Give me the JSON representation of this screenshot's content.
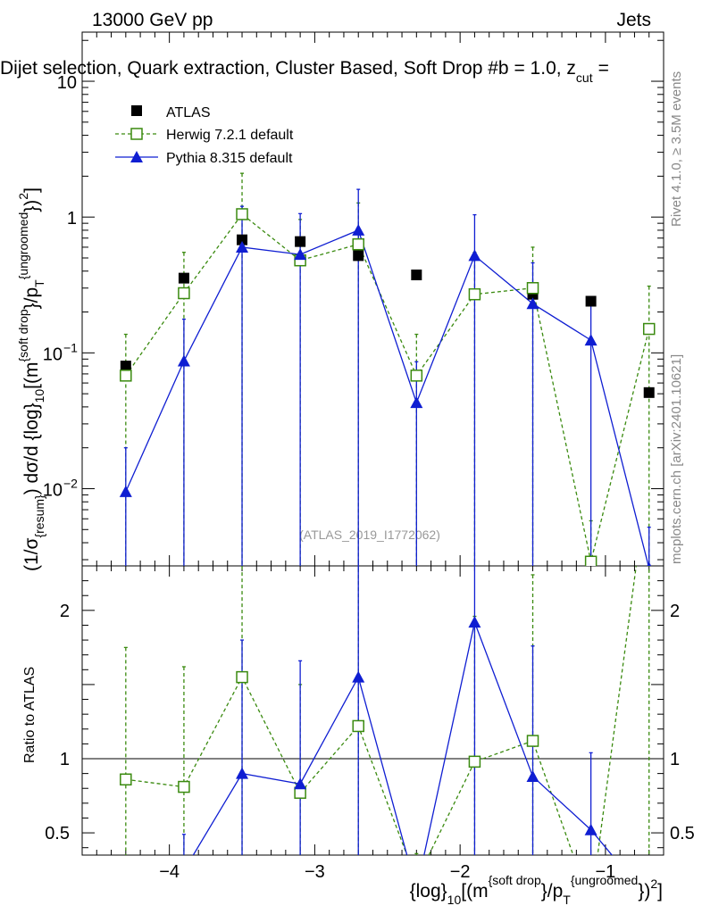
{
  "header": {
    "left": "13000 GeV pp",
    "right": "Jets"
  },
  "chart_data": {
    "type": "scatter",
    "title": "Dijet selection, Quark extraction, Cluster Based, Soft Drop #b",
    "title_parts": {
      "beta": "= 1.0, z",
      "zcut_sub": "cut",
      "tail": "="
    },
    "ylabel_parts": {
      "a": "(1/σ",
      "a_sub": "{resum}",
      "b": ") dσ/d {log}",
      "b_sub": "10",
      "c": "[(m",
      "c_sup": "{soft drop",
      "d": "}/p",
      "d_sub": "T",
      "d_sup": "{ungroomed",
      "e": "})",
      "e_sup": "2",
      "f": "]"
    },
    "xlabel_parts": {
      "a": "{log}",
      "a_sub": "10",
      "b": "[(m",
      "b_sup": "{soft drop",
      "c": "}/p",
      "c_sub": "T",
      "c_sup": "{ungroomed",
      "d": "})",
      "d_sup": "2",
      "e": "]"
    },
    "ratio_ylabel": "Ratio to ATLAS",
    "watermark": "(ATLAS_2019_I1772062)",
    "side_text_top": "Rivet 4.1.0, ≥ 3.5M events",
    "side_text_bottom": "mcplots.cern.ch [arXiv:2401.10621]",
    "xlim": [
      -4.6,
      -0.6
    ],
    "ylim_main": [
      0.0027,
      23
    ],
    "ylim_ratio": [
      0.35,
      2.3
    ],
    "x_ticks": [
      {
        "value": -4,
        "label": "−4"
      },
      {
        "value": -3,
        "label": "−3"
      },
      {
        "value": -2,
        "label": "−2"
      },
      {
        "value": -1,
        "label": "−1"
      }
    ],
    "y_ticks_main": [
      {
        "value": 10,
        "label": "10"
      },
      {
        "value": 1,
        "label": "1"
      },
      {
        "value": 0.1,
        "label": "10",
        "sup": "−1"
      },
      {
        "value": 0.01,
        "label": "10",
        "sup": "−2"
      }
    ],
    "y_ticks_ratio": [
      {
        "value": 2,
        "label": "2"
      },
      {
        "value": 1,
        "label": "1"
      },
      {
        "value": 0.5,
        "label": "0.5"
      }
    ],
    "x": [
      -4.3,
      -3.9,
      -3.5,
      -3.1,
      -2.7,
      -2.3,
      -1.9,
      -1.5,
      -1.1,
      -0.7
    ],
    "series": [
      {
        "name": "ATLAS",
        "color": "#000000",
        "marker": "square-filled",
        "values": [
          0.08,
          0.355,
          0.68,
          0.66,
          0.52,
          0.375,
          0.27,
          0.27,
          0.24,
          0.051
        ]
      },
      {
        "name": "Herwig 7.2.1 default",
        "color": "#3a8a0f",
        "marker": "square-open",
        "linestyle": "dashed",
        "values": [
          0.068,
          0.275,
          1.05,
          0.48,
          0.63,
          0.068,
          0.27,
          0.3,
          0.0029,
          0.15
        ],
        "err_up": [
          0.137,
          0.55,
          2.1,
          0.96,
          1.27,
          0.137,
          0.55,
          0.6,
          0.0058,
          0.31
        ],
        "err_down": [
          0.0001,
          0.0001,
          0.0001,
          0.0001,
          0.0001,
          0.0001,
          0.0001,
          0.0001,
          0.0001,
          0.0001
        ],
        "ratio": [
          0.86,
          0.81,
          1.55,
          0.77,
          1.22,
          0.18,
          0.98,
          1.12,
          0.012,
          2.95
        ],
        "ratio_up": [
          1.75,
          1.62,
          3.1,
          1.5,
          2.45,
          0.36,
          1.96,
          2.24,
          0.024,
          5.9
        ],
        "ratio_down": [
          0.0,
          0.0,
          0.0,
          0.0,
          0.0,
          0.0,
          0.0,
          0.0,
          0.0,
          0.0
        ]
      },
      {
        "name": "Pythia 8.315 default",
        "color": "#0f1ed2",
        "marker": "triangle",
        "linestyle": "solid",
        "values": [
          0.0095,
          0.087,
          0.6,
          0.53,
          0.8,
          0.043,
          0.52,
          0.23,
          0.124,
          0.0026
        ],
        "err_up": [
          0.02,
          0.177,
          1.2,
          1.06,
          1.6,
          0.086,
          1.04,
          0.46,
          0.25,
          0.0052
        ],
        "err_down": [
          0.0001,
          0.0001,
          0.0001,
          0.0001,
          0.0001,
          0.0001,
          0.0001,
          0.0001,
          0.0001,
          0.0001
        ],
        "ratio": [
          0.12,
          0.245,
          0.9,
          0.83,
          1.55,
          0.115,
          1.92,
          0.88,
          0.52,
          0.05
        ],
        "ratio_up": [
          0.24,
          0.49,
          1.8,
          1.66,
          3.1,
          0.23,
          3.84,
          1.76,
          1.04,
          0.1
        ],
        "ratio_down": [
          0.0,
          0.0,
          0.0,
          0.0,
          0.0,
          0.0,
          0.0,
          0.0,
          0.0,
          0.0
        ]
      }
    ],
    "legend": [
      "ATLAS",
      "Herwig 7.2.1 default",
      "Pythia 8.315 default"
    ]
  }
}
